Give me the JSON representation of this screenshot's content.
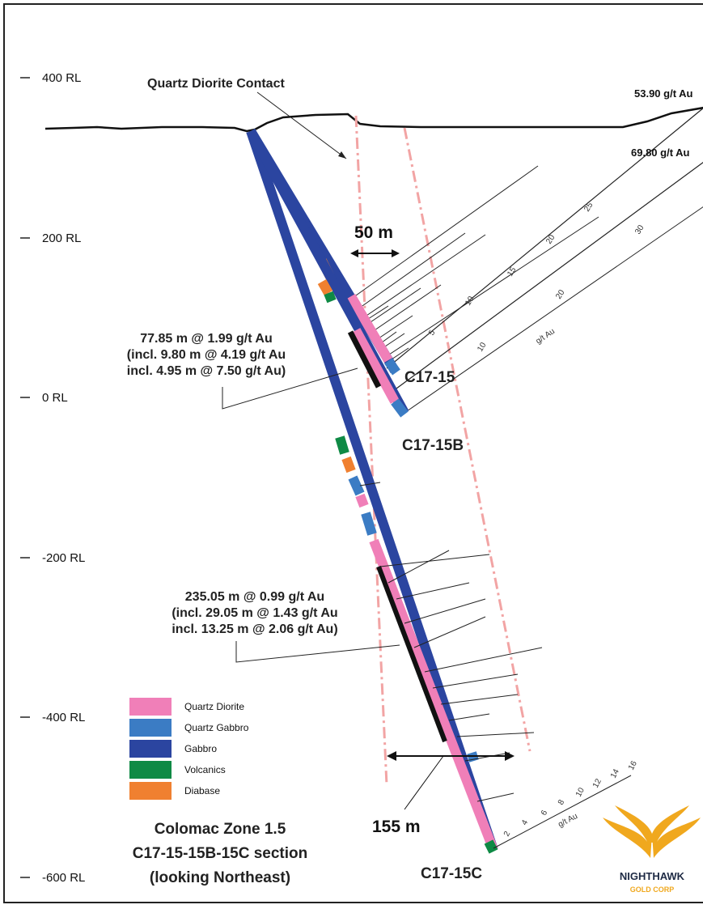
{
  "rl_labels": [
    "400 RL",
    "200 RL",
    "0 RL",
    "-200 RL",
    "-400 RL",
    "-600 RL"
  ],
  "contact_label": "Quartz Diorite Contact",
  "distance_top": "50 m",
  "distance_bottom": "155 m",
  "holes": [
    "C17-15",
    "C17-15B",
    "C17-15C"
  ],
  "grade_top": [
    "53.90 g/t Au",
    "69.80 g/t Au"
  ],
  "interval_upper": [
    "77.85 m @ 1.99 g/t Au",
    "(incl. 9.80 m @ 4.19 g/t Au",
    "incl. 4.95 m @ 7.50 g/t Au)"
  ],
  "interval_lower": [
    "235.05 m @ 0.99 g/t Au",
    "(incl. 29.05 m @ 1.43 g/t Au",
    "incl. 13.25 m @ 2.06 g/t Au)"
  ],
  "scale_a": {
    "ticks": [
      "5",
      "10",
      "15",
      "20",
      "25"
    ]
  },
  "scale_b": {
    "ticks": [
      "10",
      "20",
      "30"
    ],
    "unit": "g/t Au"
  },
  "scale_c": {
    "ticks": [
      "2",
      "4",
      "6",
      "8",
      "10",
      "12",
      "14",
      "16"
    ],
    "unit": "g/t Au"
  },
  "legend": [
    {
      "label": "Quartz Diorite",
      "color": "#f07fb8"
    },
    {
      "label": "Quartz Gabbro",
      "color": "#3b7cc4"
    },
    {
      "label": "Gabbro",
      "color": "#2b45a0"
    },
    {
      "label": "Volcanics",
      "color": "#0f8a45"
    },
    {
      "label": "Diabase",
      "color": "#f08030"
    }
  ],
  "title_lines": [
    "Colomac Zone 1.5",
    "C17-15-15B-15C section",
    "(looking Northeast)"
  ],
  "logo": {
    "name": "NIGHTHAWK",
    "sub": "GOLD CORP",
    "color": "#f0a81e"
  }
}
